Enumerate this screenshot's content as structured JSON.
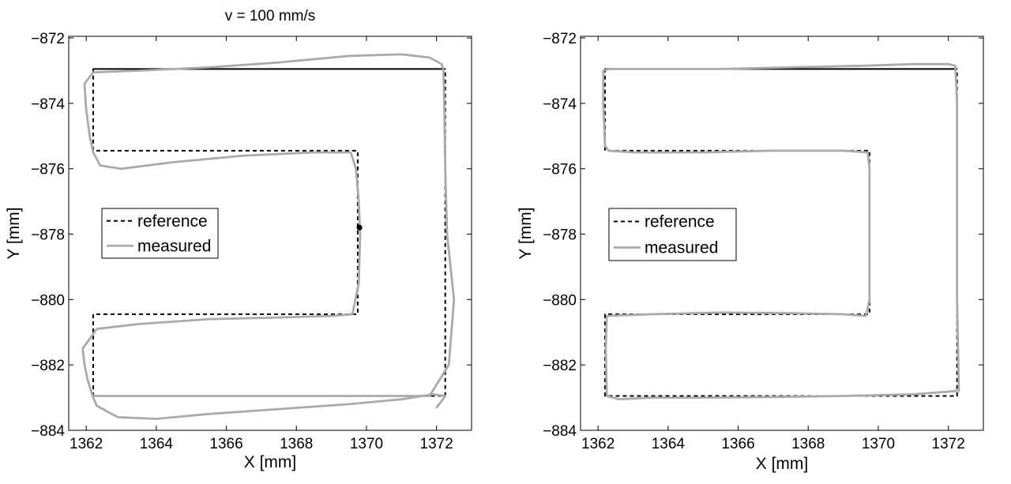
{
  "chart_data": [
    {
      "type": "line",
      "title": "v = 100 mm/s",
      "xlabel": "X [mm]",
      "ylabel": "Y [mm]",
      "xlim": [
        1361.5,
        1373
      ],
      "ylim": [
        -884,
        -871.95
      ],
      "xticks": [
        1362,
        1364,
        1366,
        1368,
        1370,
        1372
      ],
      "yticks": [
        -884,
        -882,
        -880,
        -878,
        -876,
        -874,
        -872
      ],
      "xtick_labels": [
        "1362",
        "1364",
        "1366",
        "1368",
        "1370",
        "1372"
      ],
      "ytick_labels": [
        "−884",
        "−882",
        "−880",
        "−878",
        "−876",
        "−874",
        "−872"
      ],
      "grid": false,
      "legend_position": "center-left",
      "legend": [
        "reference",
        "measured"
      ],
      "series": [
        {
          "name": "reference",
          "style": "dashed",
          "color": "#000000",
          "x": [
            1362.2,
            1372.25,
            1372.25,
            1362.2,
            1362.2,
            1369.75,
            1369.75,
            1362.2,
            1362.2,
            1372.25
          ],
          "y": [
            -872.95,
            -872.95,
            -882.95,
            -882.95,
            -880.45,
            -880.45,
            -875.45,
            -875.45,
            -872.95,
            -872.95
          ]
        },
        {
          "name": "measured",
          "style": "solid",
          "color": "#aaaaaa",
          "x": [
            1372.0,
            1372.15,
            1372.25,
            1371.9,
            1371.0,
            1369.5,
            1367.5,
            1365.5,
            1364.0,
            1362.9,
            1362.3,
            1362.2,
            1362.05,
            1361.95,
            1361.9,
            1362.3,
            1363.5,
            1365.5,
            1367.5,
            1369.0,
            1369.6,
            1369.78,
            1369.82,
            1369.78,
            1369.7,
            1369.55,
            1368.5,
            1366.5,
            1364.5,
            1363.0,
            1362.4,
            1362.2,
            1362.1,
            1362.0,
            1361.95,
            1362.2,
            1363.5,
            1365.5,
            1367.5,
            1369.5,
            1371.0,
            1371.8,
            1372.15,
            1372.2,
            1372.22,
            1372.25,
            1372.3,
            1372.5,
            1372.35,
            1371.8,
            1370.5,
            1369.0,
            1367.0,
            1365.0,
            1363.2,
            1362.3,
            1362.2
          ],
          "y": [
            -883.3,
            -883.1,
            -882.95,
            -882.9,
            -883.05,
            -883.2,
            -883.35,
            -883.5,
            -883.65,
            -883.6,
            -883.25,
            -883.0,
            -882.5,
            -882.0,
            -881.5,
            -880.9,
            -880.75,
            -880.6,
            -880.55,
            -880.5,
            -880.45,
            -879.5,
            -878.0,
            -877.0,
            -876.0,
            -875.5,
            -875.5,
            -875.6,
            -875.8,
            -876.0,
            -875.9,
            -875.5,
            -875.0,
            -874.2,
            -873.4,
            -873.05,
            -873.0,
            -872.9,
            -872.75,
            -872.55,
            -872.5,
            -872.6,
            -872.8,
            -873.0,
            -874.0,
            -876.0,
            -878.0,
            -880.0,
            -882.0,
            -882.95,
            -882.95,
            -882.95,
            -882.95,
            -882.95,
            -882.95,
            -882.95,
            -882.95
          ]
        },
        {
          "name": "",
          "style": "marker",
          "color": "#000000",
          "x": [
            1369.8
          ],
          "y": [
            -877.8
          ]
        }
      ]
    },
    {
      "type": "line",
      "title": "",
      "xlabel": "X [mm]",
      "ylabel": "Y [mm]",
      "xlim": [
        1361.5,
        1373
      ],
      "ylim": [
        -884,
        -871.95
      ],
      "xticks": [
        1362,
        1364,
        1366,
        1368,
        1370,
        1372
      ],
      "yticks": [
        -884,
        -882,
        -880,
        -878,
        -876,
        -874,
        -872
      ],
      "xtick_labels": [
        "1362",
        "1364",
        "1366",
        "1368",
        "1370",
        "1372"
      ],
      "ytick_labels": [
        "−884",
        "−882",
        "−880",
        "−878",
        "−876",
        "−874",
        "−872"
      ],
      "grid": false,
      "legend_position": "center-left",
      "legend": [
        "reference",
        "measured"
      ],
      "series": [
        {
          "name": "reference",
          "style": "dashed",
          "color": "#000000",
          "x": [
            1362.2,
            1372.25,
            1372.25,
            1362.2,
            1362.2,
            1369.75,
            1369.75,
            1362.2,
            1362.2,
            1372.25
          ],
          "y": [
            -872.95,
            -872.95,
            -882.95,
            -882.95,
            -880.45,
            -880.45,
            -875.45,
            -875.45,
            -872.95,
            -872.95
          ]
        },
        {
          "name": "measured",
          "style": "solid",
          "color": "#aaaaaa",
          "x": [
            1372.25,
            1372.2,
            1371.0,
            1369.0,
            1367.0,
            1365.0,
            1363.5,
            1362.6,
            1362.25,
            1362.22,
            1362.25,
            1363.5,
            1365.5,
            1367.5,
            1369.0,
            1369.65,
            1369.75,
            1369.75,
            1369.7,
            1369.0,
            1367.0,
            1365.0,
            1363.0,
            1362.3,
            1362.2,
            1362.15,
            1362.15,
            1362.3,
            1363.5,
            1365.5,
            1367.5,
            1369.5,
            1371.0,
            1372.0,
            1372.2,
            1372.25,
            1372.25,
            1372.3
          ],
          "y": [
            -882.75,
            -882.8,
            -882.9,
            -882.95,
            -882.98,
            -883.0,
            -883.0,
            -883.05,
            -882.95,
            -881.5,
            -880.5,
            -880.45,
            -880.4,
            -880.42,
            -880.45,
            -880.5,
            -880.0,
            -876.0,
            -875.5,
            -875.45,
            -875.45,
            -875.5,
            -875.5,
            -875.45,
            -875.3,
            -874.0,
            -873.0,
            -872.95,
            -872.95,
            -872.95,
            -872.9,
            -872.85,
            -872.8,
            -872.8,
            -872.85,
            -874.0,
            -880.0,
            -882.8
          ]
        }
      ]
    }
  ]
}
